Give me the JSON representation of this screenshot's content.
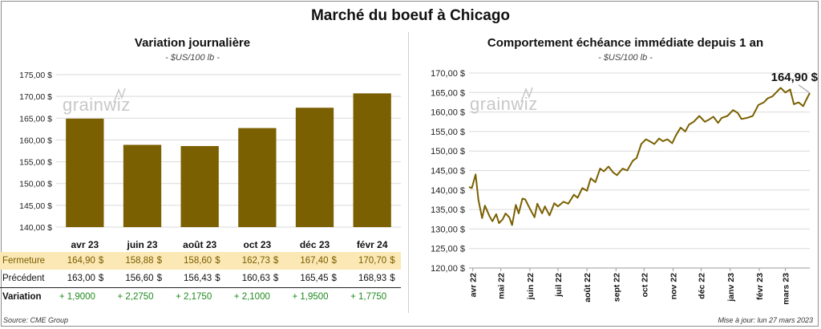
{
  "title": "Marché du boeuf à Chicago",
  "left": {
    "title": "Variation  journalière",
    "unit": "- $US/100 lb -"
  },
  "right": {
    "title": "Comportement  échéance immédiate depuis 1 an",
    "unit": "- $US/100 lb -",
    "last_value_label": "164,90 $"
  },
  "watermark": "grainwiz",
  "table": {
    "currency": "$",
    "rows": [
      {
        "label": "Fermeture",
        "values": [
          "164,90",
          "158,88",
          "158,60",
          "162,73",
          "167,40",
          "170,70"
        ]
      },
      {
        "label": "Précédent",
        "values": [
          "163,00",
          "156,60",
          "156,43",
          "160,63",
          "165,45",
          "168,93"
        ]
      },
      {
        "label": "Variation",
        "values": [
          "+ 1,9000",
          "+ 2,2750",
          "+ 2,1750",
          "+ 2,1000",
          "+ 1,9500",
          "+ 1,7750"
        ]
      }
    ]
  },
  "footer": {
    "source": "Source: CME Group",
    "updated": "Mise à jour: lun 27 mars 2023"
  },
  "colors": {
    "bar": "#7a6000",
    "line": "#7a6000",
    "grid": "#d9d9d9",
    "highlight_row": "#fbe8b4",
    "positive": "#1e8a1e"
  },
  "chart_data": [
    {
      "type": "bar",
      "title": "Variation  journalière",
      "categories": [
        "avr 23",
        "juin 23",
        "août 23",
        "oct 23",
        "déc 23",
        "févr 24"
      ],
      "values": [
        164.9,
        158.88,
        158.6,
        162.73,
        167.4,
        170.7
      ],
      "ylim": [
        140,
        175
      ],
      "yticks": [
        "140,00 $",
        "145,00 $",
        "150,00 $",
        "155,00 $",
        "160,00 $",
        "165,00 $",
        "170,00 $",
        "175,00 $"
      ],
      "grid": true
    },
    {
      "type": "line",
      "title": "Comportement  échéance immédiate depuis 1 an",
      "x_start": "2022-03-28",
      "x_end": "2023-03-27",
      "xticks": [
        "avr 22",
        "mai 22",
        "juin 22",
        "juil 22",
        "août 22",
        "sept 22",
        "oct 22",
        "nov 22",
        "déc 22",
        "janv 23",
        "févr 23",
        "mars 23"
      ],
      "ylim": [
        120,
        170
      ],
      "yticks": [
        "120,00 $",
        "125,00 $",
        "130,00 $",
        "135,00 $",
        "140,00 $",
        "145,00 $",
        "150,00 $",
        "155,00 $",
        "160,00 $",
        "165,00 $",
        "170,00 $"
      ],
      "grid": true,
      "x": [
        "2022-03-28",
        "2022-03-31",
        "2022-04-04",
        "2022-04-07",
        "2022-04-11",
        "2022-04-14",
        "2022-04-19",
        "2022-04-22",
        "2022-04-26",
        "2022-04-29",
        "2022-05-03",
        "2022-05-06",
        "2022-05-10",
        "2022-05-13",
        "2022-05-17",
        "2022-05-20",
        "2022-05-24",
        "2022-05-27",
        "2022-06-01",
        "2022-06-06",
        "2022-06-09",
        "2022-06-14",
        "2022-06-17",
        "2022-06-22",
        "2022-06-27",
        "2022-07-01",
        "2022-07-07",
        "2022-07-12",
        "2022-07-18",
        "2022-07-22",
        "2022-07-27",
        "2022-08-01",
        "2022-08-05",
        "2022-08-10",
        "2022-08-15",
        "2022-08-19",
        "2022-08-24",
        "2022-08-29",
        "2022-09-02",
        "2022-09-08",
        "2022-09-13",
        "2022-09-19",
        "2022-09-23",
        "2022-09-28",
        "2022-10-03",
        "2022-10-07",
        "2022-10-12",
        "2022-10-17",
        "2022-10-21",
        "2022-10-26",
        "2022-10-31",
        "2022-11-04",
        "2022-11-09",
        "2022-11-14",
        "2022-11-18",
        "2022-11-23",
        "2022-11-29",
        "2022-12-05",
        "2022-12-09",
        "2022-12-14",
        "2022-12-19",
        "2022-12-23",
        "2022-12-29",
        "2023-01-04",
        "2023-01-09",
        "2023-01-13",
        "2023-01-19",
        "2023-01-25",
        "2023-01-31",
        "2023-02-06",
        "2023-02-10",
        "2023-02-15",
        "2023-02-21",
        "2023-02-24",
        "2023-03-01",
        "2023-03-06",
        "2023-03-10",
        "2023-03-15",
        "2023-03-20",
        "2023-03-23",
        "2023-03-27"
      ],
      "y": [
        140.8,
        140.5,
        144.0,
        137.5,
        132.8,
        136.0,
        133.2,
        132.0,
        133.8,
        131.5,
        132.5,
        134.0,
        133.0,
        131.0,
        136.2,
        134.0,
        137.8,
        137.6,
        135.2,
        133.0,
        136.5,
        134.0,
        135.8,
        133.5,
        136.6,
        135.8,
        137.0,
        136.5,
        138.8,
        138.0,
        140.5,
        139.8,
        143.0,
        142.0,
        145.5,
        144.8,
        146.0,
        144.5,
        143.8,
        145.5,
        145.0,
        147.5,
        148.2,
        151.8,
        153.0,
        152.5,
        151.8,
        153.2,
        152.5,
        153.0,
        152.0,
        154.0,
        156.0,
        155.0,
        156.8,
        157.5,
        159.0,
        157.5,
        158.0,
        158.8,
        157.2,
        158.5,
        159.0,
        160.5,
        159.8,
        158.2,
        158.5,
        159.0,
        161.8,
        162.5,
        163.5,
        164.0,
        165.5,
        166.2,
        165.0,
        165.8,
        162.0,
        162.5,
        161.5,
        163.0,
        164.9
      ]
    }
  ]
}
